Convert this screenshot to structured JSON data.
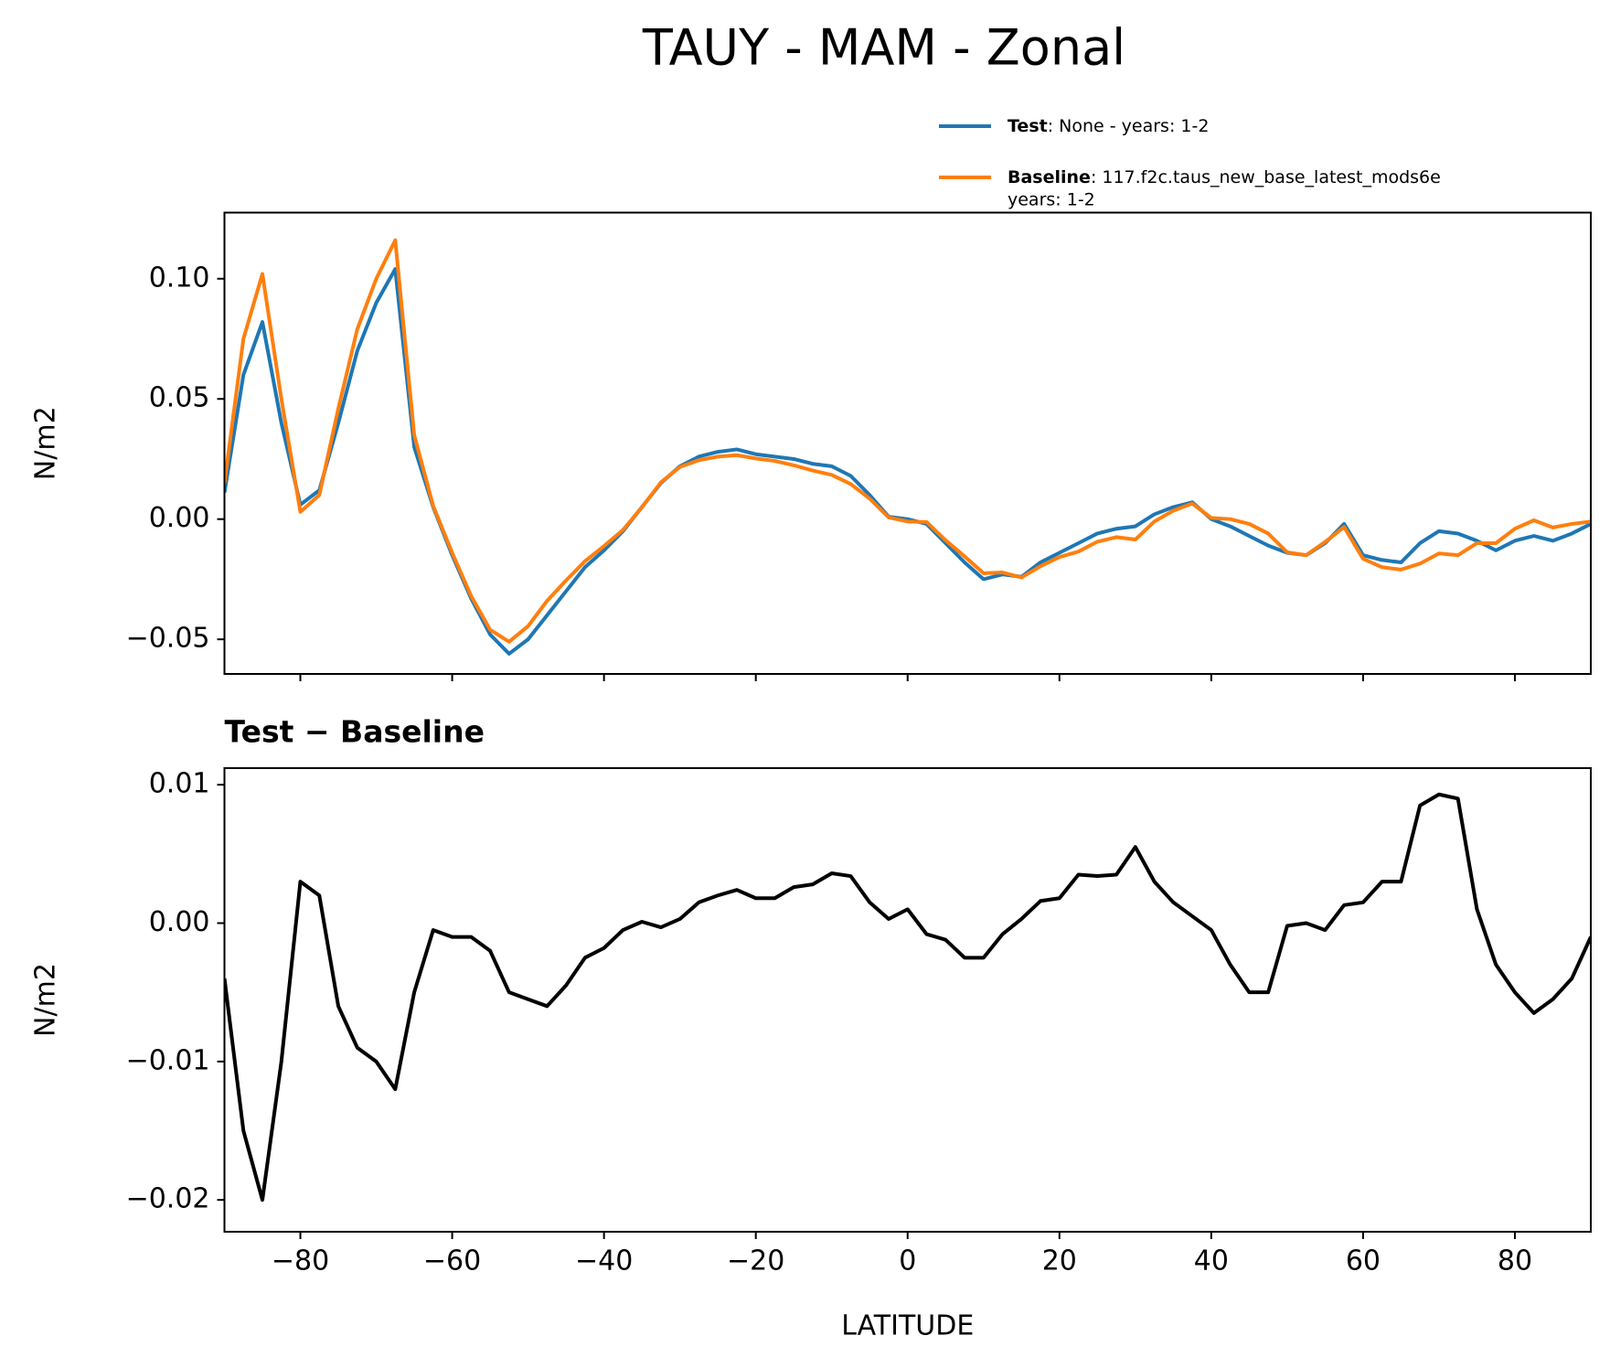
{
  "chart_data": [
    {
      "type": "line",
      "title": "TAUY - MAM - Zonal",
      "title_loc": "center",
      "ylabel": "N/m2",
      "x": [
        -90,
        -87.5,
        -85,
        -82.5,
        -80,
        -77.5,
        -75,
        -72.5,
        -70,
        -67.5,
        -65,
        -62.5,
        -60,
        -57.5,
        -55,
        -52.5,
        -50,
        -47.5,
        -45,
        -42.5,
        -40,
        -37.5,
        -35,
        -32.5,
        -30,
        -27.5,
        -25,
        -22.5,
        -20,
        -17.5,
        -15,
        -12.5,
        -10,
        -7.5,
        -5,
        -2.5,
        0,
        2.5,
        5,
        7.5,
        10,
        12.5,
        15,
        17.5,
        20,
        22.5,
        25,
        27.5,
        30,
        32.5,
        35,
        37.5,
        40,
        42.5,
        45,
        47.5,
        50,
        52.5,
        55,
        57.5,
        60,
        62.5,
        65,
        67.5,
        70,
        72.5,
        75,
        77.5,
        80,
        82.5,
        85,
        87.5,
        90
      ],
      "series": [
        {
          "name": "Test",
          "detail": [
            ": None - years: 1-2"
          ],
          "color": "#1f77b4",
          "values": [
            0.011,
            0.06,
            0.082,
            0.04,
            0.006,
            0.012,
            0.04,
            0.07,
            0.09,
            0.104,
            0.03,
            0.005,
            -0.015,
            -0.033,
            -0.048,
            -0.056,
            -0.05,
            -0.04,
            -0.03,
            -0.02,
            -0.013,
            -0.005,
            0.005,
            0.015,
            0.022,
            0.026,
            0.028,
            0.029,
            0.027,
            0.026,
            0.025,
            0.023,
            0.022,
            0.018,
            0.01,
            0.001,
            0,
            -0.002,
            -0.01,
            -0.018,
            -0.025,
            -0.023,
            -0.024,
            -0.018,
            -0.014,
            -0.01,
            -0.006,
            -0.004,
            -0.003,
            0.002,
            0.005,
            0.007,
            0,
            -0.003,
            -0.007,
            -0.011,
            -0.014,
            -0.015,
            -0.01,
            -0.002,
            -0.015,
            -0.017,
            -0.018,
            -0.01,
            -0.005,
            -0.006,
            -0.009,
            -0.013,
            -0.009,
            -0.007,
            -0.009,
            -0.006,
            -0.002
          ]
        },
        {
          "name": "Baseline",
          "detail": [
            ": 117.f2c.taus_new_base_latest_mods6e",
            "years: 1-2"
          ],
          "color": "#ff7f0e",
          "values": [
            0.015,
            0.075,
            0.102,
            0.05,
            0.003,
            0.01,
            0.046,
            0.079,
            0.1,
            0.116,
            0.035,
            0.0055,
            -0.014,
            -0.032,
            -0.046,
            -0.051,
            -0.0445,
            -0.034,
            -0.0255,
            -0.0175,
            -0.0112,
            -0.0045,
            0.0049,
            0.0153,
            0.0217,
            0.0245,
            0.026,
            0.0266,
            0.0252,
            0.0242,
            0.0224,
            0.0202,
            0.0184,
            0.0146,
            0.0085,
            0.0007,
            -0.001,
            -0.0012,
            -0.0088,
            -0.0155,
            -0.0225,
            -0.0222,
            -0.0243,
            -0.0196,
            -0.0158,
            -0.0135,
            -0.0094,
            -0.0075,
            -0.0085,
            -0.001,
            0.0035,
            0.0065,
            0.0005,
            0,
            -0.002,
            -0.006,
            -0.0138,
            -0.015,
            -0.0095,
            -0.0033,
            -0.0165,
            -0.02,
            -0.021,
            -0.0185,
            -0.0143,
            -0.015,
            -0.01,
            -0.01,
            -0.004,
            -0.0005,
            -0.0035,
            -0.002,
            -0.001
          ]
        }
      ],
      "xlim": [
        -90,
        90
      ],
      "ylim": [
        -0.0644,
        0.1275
      ],
      "xticks": [
        -80,
        -60,
        -40,
        -20,
        0,
        20,
        40,
        60,
        80
      ],
      "xtick_labels": false,
      "yticks": [
        {
          "value": -0.05,
          "label": "−0.05"
        },
        {
          "value": 0,
          "label": "0.00"
        },
        {
          "value": 0.05,
          "label": "0.05"
        },
        {
          "value": 0.1,
          "label": "0.10"
        }
      ]
    },
    {
      "type": "line",
      "title": "Test − Baseline",
      "title_loc": "left",
      "ylabel": "N/m2",
      "xlabel": "LATITUDE",
      "x": [
        -90,
        -87.5,
        -85,
        -82.5,
        -80,
        -77.5,
        -75,
        -72.5,
        -70,
        -67.5,
        -65,
        -62.5,
        -60,
        -57.5,
        -55,
        -52.5,
        -50,
        -47.5,
        -45,
        -42.5,
        -40,
        -37.5,
        -35,
        -32.5,
        -30,
        -27.5,
        -25,
        -22.5,
        -20,
        -17.5,
        -15,
        -12.5,
        -10,
        -7.5,
        -5,
        -2.5,
        0,
        2.5,
        5,
        7.5,
        10,
        12.5,
        15,
        17.5,
        20,
        22.5,
        25,
        27.5,
        30,
        32.5,
        35,
        37.5,
        40,
        42.5,
        45,
        47.5,
        50,
        52.5,
        55,
        57.5,
        60,
        62.5,
        65,
        67.5,
        70,
        72.5,
        75,
        77.5,
        80,
        82.5,
        85,
        87.5,
        90
      ],
      "series": [
        {
          "color": "#000000",
          "values": [
            -0.004,
            -0.015,
            -0.02,
            -0.01,
            0.003,
            0.002,
            -0.006,
            -0.009,
            -0.01,
            -0.012,
            -0.005,
            -0.0005,
            -0.001,
            -0.001,
            -0.002,
            -0.005,
            -0.0055,
            -0.006,
            -0.0045,
            -0.0025,
            -0.0018,
            -0.0005,
            0.0001,
            -0.0003,
            0.0003,
            0.0015,
            0.002,
            0.0024,
            0.0018,
            0.0018,
            0.0026,
            0.0028,
            0.0036,
            0.0034,
            0.0015,
            0.0003,
            0.001,
            -0.0008,
            -0.0012,
            -0.0025,
            -0.0025,
            -0.0008,
            0.0003,
            0.0016,
            0.0018,
            0.0035,
            0.0034,
            0.0035,
            0.0055,
            0.003,
            0.0015,
            0.0005,
            -0.0005,
            -0.003,
            -0.005,
            -0.005,
            -0.0002,
            0,
            -0.0005,
            0.0013,
            0.0015,
            0.003,
            0.003,
            0.0085,
            0.0093,
            0.009,
            0.001,
            -0.003,
            -0.005,
            -0.0065,
            -0.0055,
            -0.004,
            -0.001
          ]
        }
      ],
      "xlim": [
        -90,
        90
      ],
      "ylim": [
        -0.0223,
        0.0112
      ],
      "xticks": [
        {
          "value": -80,
          "label": "−80"
        },
        {
          "value": -60,
          "label": "−60"
        },
        {
          "value": -40,
          "label": "−40"
        },
        {
          "value": -20,
          "label": "−20"
        },
        0,
        20,
        40,
        60,
        80
      ],
      "xtick_labels": true,
      "yticks": [
        {
          "value": -0.02,
          "label": "−0.02"
        },
        {
          "value": -0.01,
          "label": "−0.01"
        },
        {
          "value": 0,
          "label": "0.00"
        },
        {
          "value": 0.01,
          "label": "0.01"
        }
      ]
    }
  ]
}
